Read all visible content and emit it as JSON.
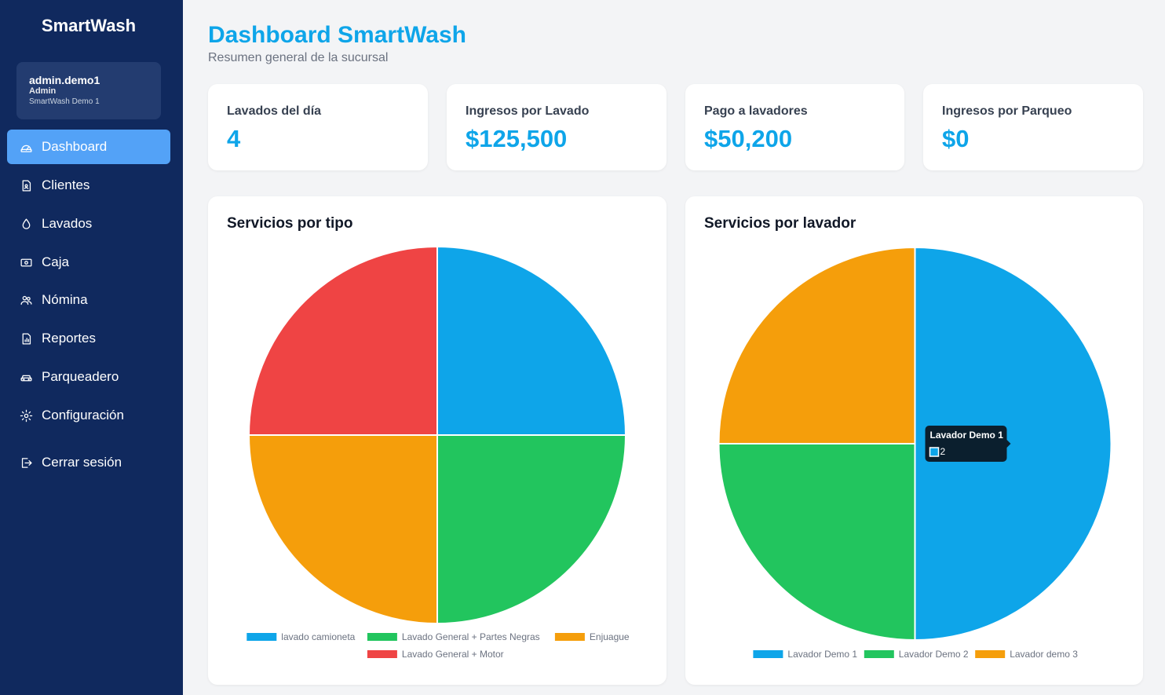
{
  "sidebar": {
    "brand": "SmartWash",
    "user": {
      "name": "admin.demo1",
      "role": "Admin",
      "branch": "SmartWash Demo 1"
    },
    "items": [
      {
        "label": "Dashboard",
        "icon": "dashboard-gauge-icon",
        "active": true
      },
      {
        "label": "Clientes",
        "icon": "client-file-icon",
        "active": false
      },
      {
        "label": "Lavados",
        "icon": "water-drop-icon",
        "active": false
      },
      {
        "label": "Caja",
        "icon": "cash-register-icon",
        "active": false
      },
      {
        "label": "Nómina",
        "icon": "users-icon",
        "active": false
      },
      {
        "label": "Reportes",
        "icon": "report-chart-icon",
        "active": false
      },
      {
        "label": "Parqueadero",
        "icon": "car-icon",
        "active": false
      },
      {
        "label": "Configuración",
        "icon": "gear-icon",
        "active": false
      }
    ],
    "logout": {
      "label": "Cerrar sesión",
      "icon": "logout-icon"
    }
  },
  "header": {
    "title": "Dashboard SmartWash",
    "subtitle": "Resumen general de la sucursal"
  },
  "stats": [
    {
      "label": "Lavados del día",
      "value": "4"
    },
    {
      "label": "Ingresos por Lavado",
      "value": "$125,500"
    },
    {
      "label": "Pago a lavadores",
      "value": "$50,200"
    },
    {
      "label": "Ingresos por Parqueo",
      "value": "$0"
    }
  ],
  "colors": {
    "accent": "#0ea5e9",
    "sidebar_bg": "#10295e",
    "active_item": "#53a2f7",
    "series": [
      "#0ea5e9",
      "#22c55e",
      "#f59e0b",
      "#ef4444"
    ]
  },
  "chart_data": [
    {
      "type": "pie",
      "title": "Servicios por tipo",
      "categories": [
        "lavado camioneta",
        "Lavado General + Partes Negras",
        "Enjuague",
        "Lavado General + Motor"
      ],
      "values": [
        1,
        1,
        1,
        1
      ],
      "colors": [
        "#0ea5e9",
        "#22c55e",
        "#f59e0b",
        "#ef4444"
      ],
      "legend": "bottom"
    },
    {
      "type": "pie",
      "title": "Servicios por lavador",
      "categories": [
        "Lavador Demo 1",
        "Lavador Demo 2",
        "Lavador demo 3"
      ],
      "values": [
        2,
        1,
        1
      ],
      "colors": [
        "#0ea5e9",
        "#22c55e",
        "#f59e0b"
      ],
      "legend": "bottom",
      "tooltip": {
        "title": "Lavador Demo 1",
        "value": "2"
      }
    }
  ]
}
